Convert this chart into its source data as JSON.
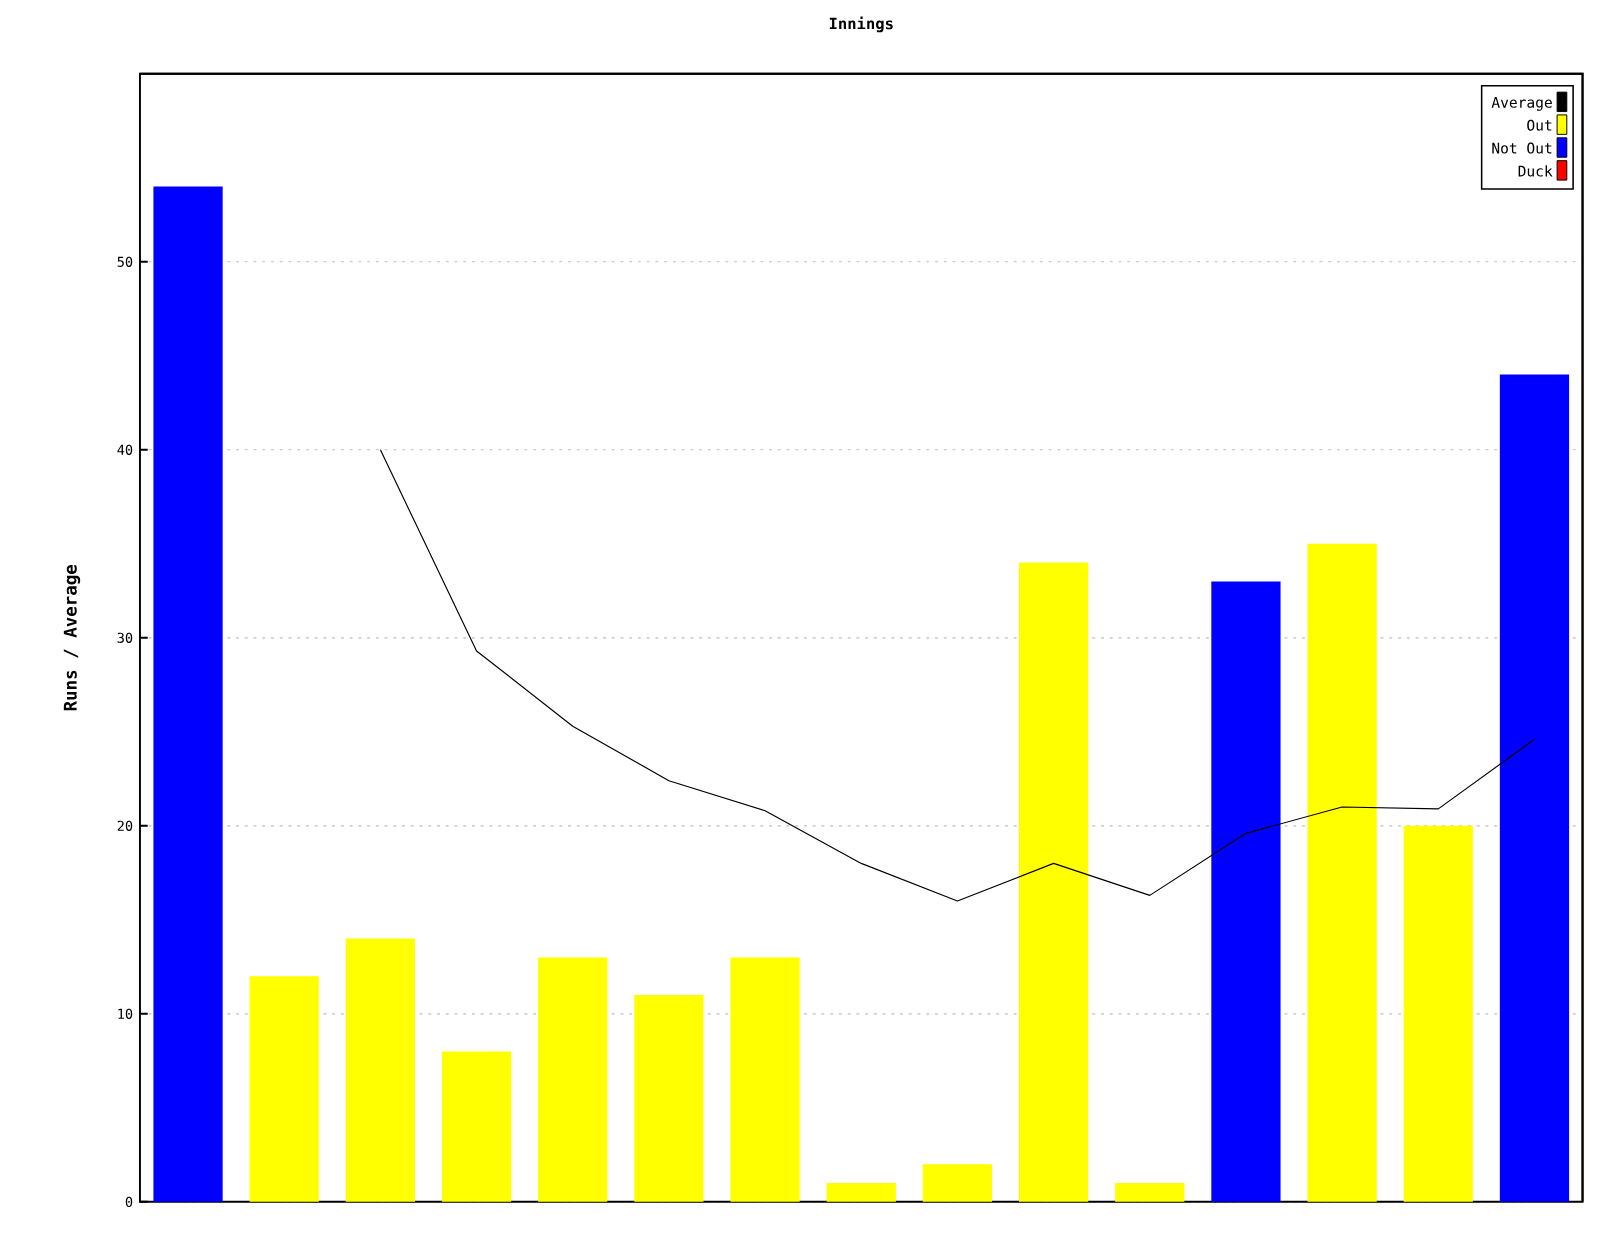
{
  "chart_data": {
    "type": "bar",
    "title": "Innings",
    "ylabel": "Runs / Average",
    "categories": [
      null,
      null,
      null,
      null,
      null,
      null,
      null,
      null,
      null,
      null,
      null,
      null,
      null,
      null,
      null
    ],
    "series": [
      {
        "name": "Average",
        "type": "line",
        "color": "#000000",
        "values": [
          null,
          null,
          40,
          29.3,
          25.3,
          22.4,
          20.8,
          18,
          16,
          18,
          16.3,
          19.6,
          21,
          20.9,
          24.6
        ]
      },
      {
        "name": "Out",
        "color": "#ffff00",
        "values": [
          null,
          12,
          14,
          8,
          13,
          11,
          13,
          1,
          2,
          34,
          1,
          null,
          35,
          20,
          null
        ]
      },
      {
        "name": "Not Out",
        "color": "#0000ff",
        "values": [
          54,
          null,
          null,
          null,
          null,
          null,
          null,
          null,
          null,
          null,
          null,
          33,
          null,
          null,
          44
        ]
      },
      {
        "name": "Duck",
        "color": "#ff0000",
        "values": [
          null,
          null,
          null,
          null,
          null,
          null,
          null,
          null,
          null,
          null,
          null,
          null,
          null,
          null,
          null
        ]
      }
    ],
    "stacked": true,
    "ylim": [
      0,
      60
    ],
    "yticks": [
      0,
      10,
      20,
      30,
      40,
      50
    ],
    "grid": "y",
    "legend": "top right",
    "tick_labels": "y"
  }
}
